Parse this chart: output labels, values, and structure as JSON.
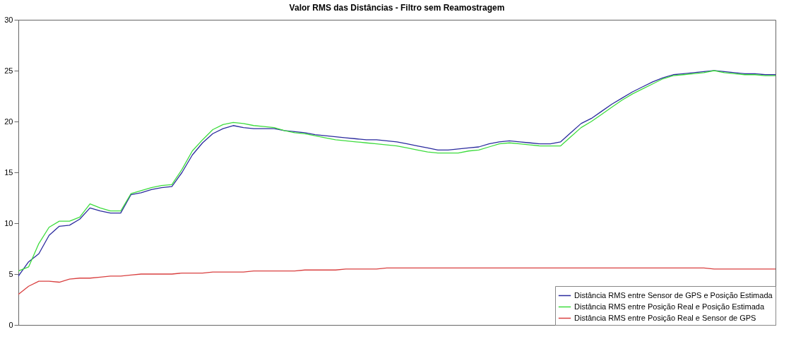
{
  "chart_data": {
    "type": "line",
    "title": "Valor RMS das Distâncias - Filtro sem Reamostragem",
    "categories": [
      null,
      null,
      null,
      null,
      null,
      null,
      null,
      null,
      null,
      null,
      null,
      null,
      null,
      null,
      null,
      null,
      null,
      null,
      null,
      null,
      null,
      null,
      null,
      null,
      null,
      null,
      null,
      null,
      null,
      null,
      null,
      null,
      null,
      null,
      null,
      null,
      null,
      null,
      null,
      null,
      null,
      null,
      null,
      null,
      null,
      null,
      null,
      null,
      null,
      null,
      null,
      null,
      null,
      null,
      null,
      null,
      null,
      null,
      null,
      null,
      null,
      null,
      null,
      null,
      null,
      null,
      null,
      null,
      null,
      null,
      null,
      null,
      null,
      null,
      null
    ],
    "series": [
      {
        "name": "Distância RMS entre Sensor de GPS e Posição Estimada",
        "color": "#2b2b9e",
        "values": [
          4.8,
          6.2,
          7.0,
          8.8,
          9.7,
          9.8,
          10.4,
          11.5,
          11.2,
          11.0,
          11.0,
          12.8,
          13.0,
          13.3,
          13.5,
          13.6,
          15.0,
          16.7,
          17.9,
          18.8,
          19.3,
          19.6,
          19.4,
          19.3,
          19.3,
          19.3,
          19.1,
          19.0,
          18.9,
          18.7,
          18.6,
          18.5,
          18.4,
          18.3,
          18.2,
          18.2,
          18.1,
          18.0,
          17.8,
          17.6,
          17.4,
          17.2,
          17.2,
          17.3,
          17.4,
          17.5,
          17.8,
          18.0,
          18.1,
          18.0,
          17.9,
          17.8,
          17.8,
          18.0,
          18.9,
          19.8,
          20.3,
          21.0,
          21.7,
          22.3,
          22.9,
          23.4,
          23.9,
          24.3,
          24.6,
          24.7,
          24.8,
          24.9,
          25.0,
          24.9,
          24.8,
          24.7,
          24.7,
          24.6,
          24.6
        ]
      },
      {
        "name": "Distância RMS entre Posição Real e Posição Estimada",
        "color": "#3ddc3d",
        "values": [
          5.3,
          5.7,
          8.0,
          9.6,
          10.2,
          10.2,
          10.6,
          11.9,
          11.5,
          11.2,
          11.2,
          12.9,
          13.2,
          13.5,
          13.7,
          13.8,
          15.3,
          17.1,
          18.2,
          19.2,
          19.7,
          19.9,
          19.8,
          19.6,
          19.5,
          19.4,
          19.1,
          18.9,
          18.8,
          18.6,
          18.4,
          18.2,
          18.1,
          18.0,
          17.9,
          17.8,
          17.7,
          17.6,
          17.4,
          17.2,
          17.0,
          16.9,
          16.9,
          16.9,
          17.1,
          17.2,
          17.5,
          17.8,
          17.9,
          17.8,
          17.7,
          17.6,
          17.6,
          17.6,
          18.5,
          19.4,
          20.0,
          20.7,
          21.4,
          22.1,
          22.7,
          23.2,
          23.7,
          24.2,
          24.5,
          24.6,
          24.7,
          24.8,
          25.0,
          24.8,
          24.7,
          24.6,
          24.6,
          24.5,
          24.5
        ]
      },
      {
        "name": "Distância RMS entre Posição Real e Sensor de GPS",
        "color": "#d94040",
        "values": [
          3.0,
          3.8,
          4.3,
          4.3,
          4.2,
          4.5,
          4.6,
          4.6,
          4.7,
          4.8,
          4.8,
          4.9,
          5.0,
          5.0,
          5.0,
          5.0,
          5.1,
          5.1,
          5.1,
          5.2,
          5.2,
          5.2,
          5.2,
          5.3,
          5.3,
          5.3,
          5.3,
          5.3,
          5.4,
          5.4,
          5.4,
          5.4,
          5.5,
          5.5,
          5.5,
          5.5,
          5.6,
          5.6,
          5.6,
          5.6,
          5.6,
          5.6,
          5.6,
          5.6,
          5.6,
          5.6,
          5.6,
          5.6,
          5.6,
          5.6,
          5.6,
          5.6,
          5.6,
          5.6,
          5.6,
          5.6,
          5.6,
          5.6,
          5.6,
          5.6,
          5.6,
          5.6,
          5.6,
          5.6,
          5.6,
          5.6,
          5.6,
          5.6,
          5.5,
          5.5,
          5.5,
          5.5,
          5.5,
          5.5,
          5.5
        ]
      }
    ],
    "ylim": [
      0,
      30
    ],
    "yticks": [
      0,
      5,
      10,
      15,
      20,
      25,
      30
    ],
    "grid": false,
    "legend": "bottom right",
    "marker": "none",
    "line_style": "solid"
  }
}
